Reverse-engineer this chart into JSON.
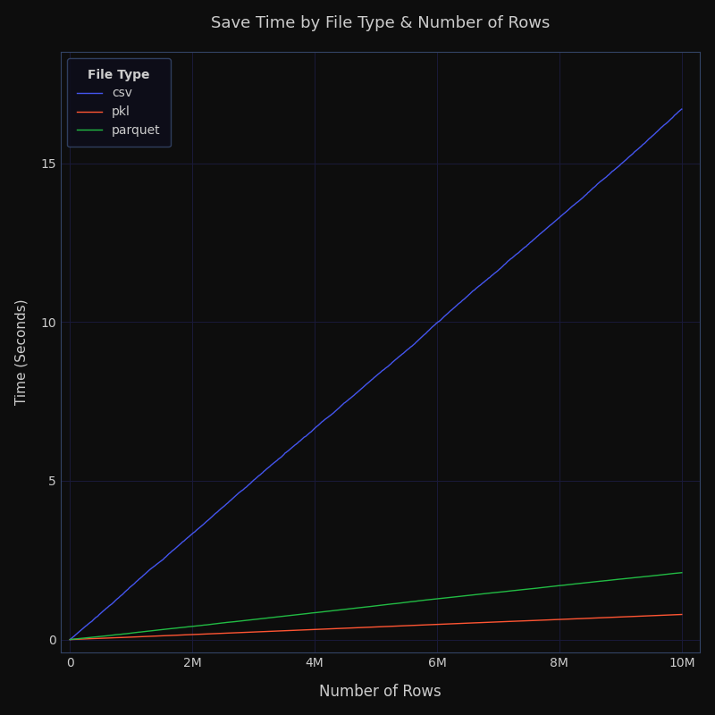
{
  "title": "Save Time by File Type & Number of Rows",
  "xlabel": "Number of Rows",
  "ylabel": "Time (Seconds)",
  "background_color": "#0d0d0d",
  "text_color": "#cccccc",
  "grid_color": "#1a1a3a",
  "legend_title": "File Type",
  "series": [
    {
      "name": "csv",
      "color": "#4455ee",
      "slope": 1.68e-06,
      "noise_std": 0.003,
      "end_val": 17.0
    },
    {
      "name": "pkl",
      "color": "#ff5533",
      "slope": 8e-08,
      "noise_std": 0.0002,
      "end_val": 0.75
    },
    {
      "name": "parquet",
      "color": "#22bb44",
      "slope": 2.1e-07,
      "noise_std": 0.0006,
      "end_val": 2.1
    }
  ],
  "n_points": 1000,
  "x_max": 10000000,
  "ylim": [
    -0.4,
    18.5
  ],
  "xlim": [
    -150000,
    10300000
  ],
  "y_ticks": [
    0,
    5,
    10,
    15
  ],
  "x_ticks": [
    0,
    2000000,
    4000000,
    6000000,
    8000000,
    10000000
  ],
  "x_tick_labels": [
    "0",
    "2M",
    "4M",
    "6M",
    "8M",
    "10M"
  ]
}
